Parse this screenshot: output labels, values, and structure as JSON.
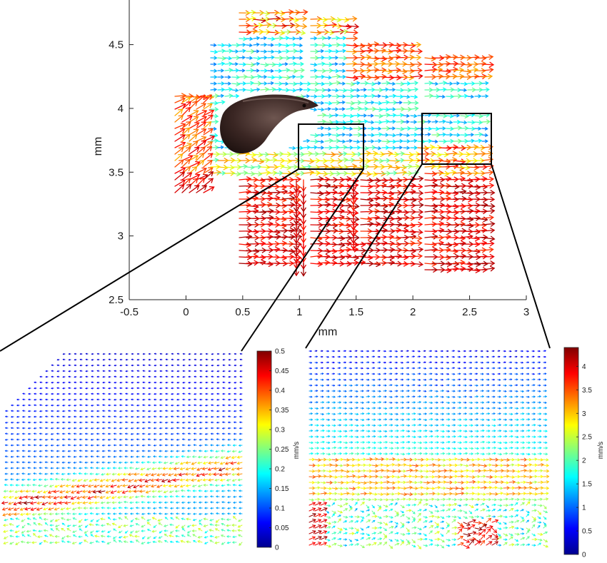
{
  "chart_data": [
    {
      "type": "quiver",
      "panel": "overview",
      "xlabel": "mm",
      "ylabel": "mm",
      "xlim": [
        -0.5,
        3
      ],
      "ylim": [
        2.5,
        4.85
      ],
      "xticks": [
        "-0.5",
        "0",
        "0.5",
        "1",
        "1.5",
        "2",
        "2.5",
        "3"
      ],
      "yticks": [
        "2.5",
        "3",
        "3.5",
        "4",
        "4.5"
      ],
      "zoom_boxes": [
        {
          "x": [
            1.0,
            1.58
          ],
          "y": [
            3.55,
            3.9
          ]
        },
        {
          "x": [
            2.1,
            2.7
          ],
          "y": [
            3.58,
            3.98
          ]
        }
      ],
      "colormap": "jet",
      "subject": "fish larva silhouette"
    },
    {
      "type": "quiver",
      "panel": "zoom-left",
      "colorbar": {
        "label": "mm/s",
        "range": [
          0,
          0.5
        ],
        "ticks": [
          "0",
          "0.05",
          "0.1",
          "0.15",
          "0.2",
          "0.25",
          "0.3",
          "0.35",
          "0.4",
          "0.45",
          "0.5"
        ]
      }
    },
    {
      "type": "quiver",
      "panel": "zoom-right",
      "colorbar": {
        "label": "mm/s",
        "range": [
          0,
          4.4
        ],
        "ticks": [
          "0",
          "0.5",
          "1",
          "1.5",
          "2",
          "2.5",
          "3",
          "3.5",
          "4"
        ]
      }
    }
  ]
}
